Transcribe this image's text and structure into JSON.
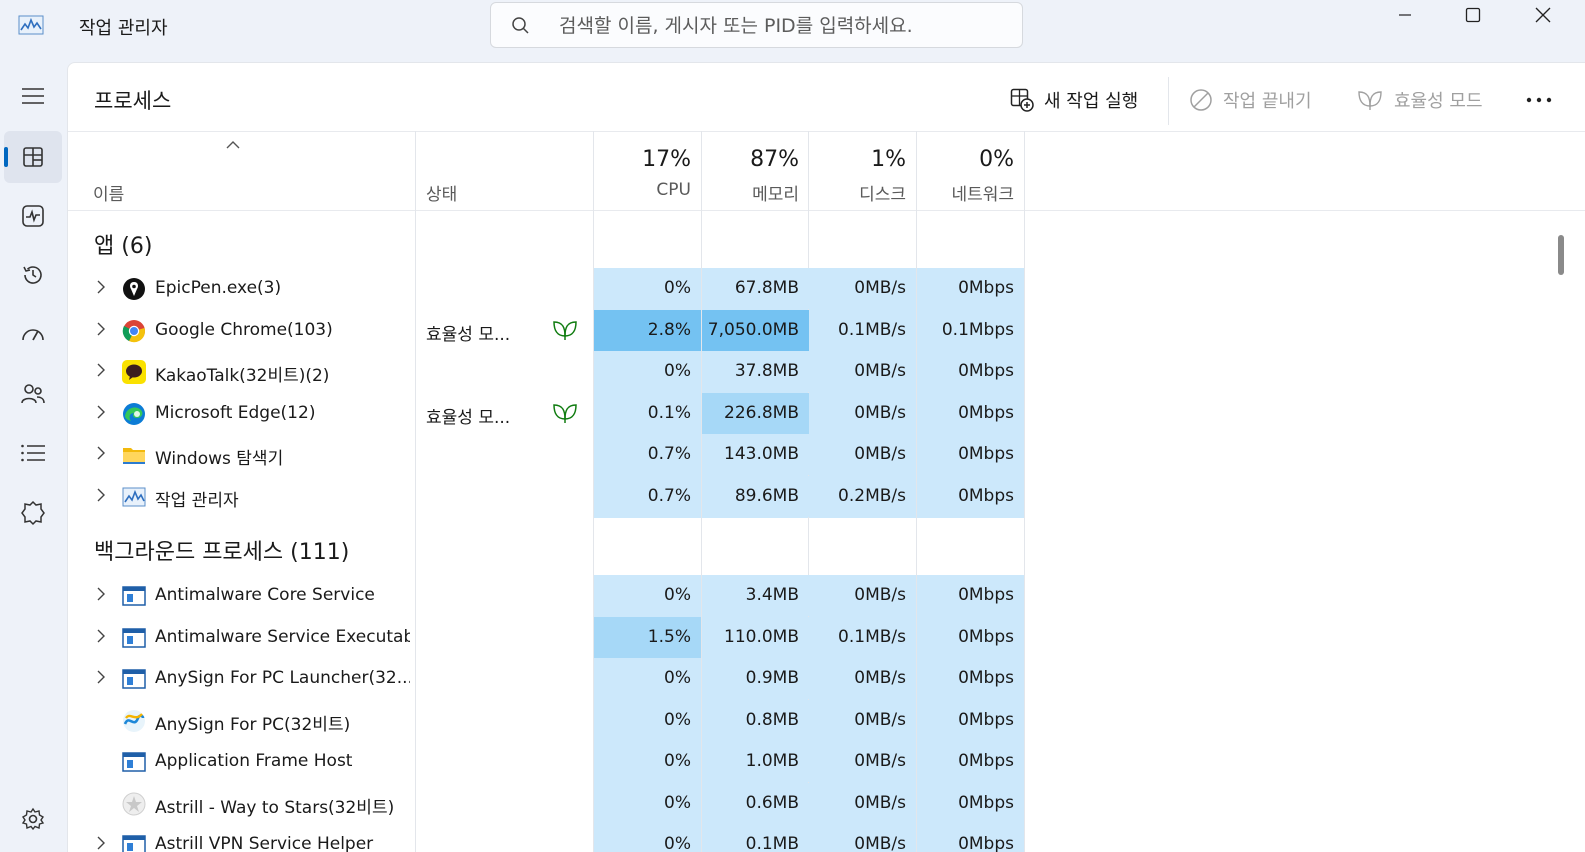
{
  "window": {
    "title": "작업 관리자"
  },
  "search": {
    "placeholder": "검색할 이름, 게시자 또는 PID를 입력하세요."
  },
  "nav": {
    "items": [
      {
        "name": "menu",
        "icon": "hamburger-icon"
      },
      {
        "name": "processes",
        "icon": "processes-icon",
        "active": true
      },
      {
        "name": "performance",
        "icon": "performance-icon"
      },
      {
        "name": "app-history",
        "icon": "history-icon"
      },
      {
        "name": "startup",
        "icon": "startup-icon"
      },
      {
        "name": "users",
        "icon": "users-icon"
      },
      {
        "name": "details",
        "icon": "details-icon"
      },
      {
        "name": "services",
        "icon": "services-icon"
      },
      {
        "name": "settings",
        "icon": "settings-icon"
      }
    ]
  },
  "page": {
    "title": "프로세스"
  },
  "toolbar": {
    "run_new_task": "새 작업 실행",
    "end_task": "작업 끝내기",
    "efficiency_mode": "효율성 모드"
  },
  "columns": {
    "name": "이름",
    "status": "상태",
    "cpu": {
      "pct": "17%",
      "label": "CPU"
    },
    "memory": {
      "pct": "87%",
      "label": "메모리"
    },
    "disk": {
      "pct": "1%",
      "label": "디스크"
    },
    "network": {
      "pct": "0%",
      "label": "네트워크"
    }
  },
  "groups": {
    "apps": {
      "title": "앱 (6)",
      "rows": [
        {
          "name": "EpicPen.exe(3)",
          "status": "",
          "cpu": "0%",
          "mem": "67.8MB",
          "disk": "0MB/s",
          "net": "0Mbps",
          "icon": "epicpen-icon",
          "expand": true
        },
        {
          "name": "Google Chrome(103)",
          "status": "효율성 모...",
          "cpu": "2.8%",
          "mem": "7,050.0MB",
          "disk": "0.1MB/s",
          "net": "0.1Mbps",
          "icon": "chrome-icon",
          "expand": true
        },
        {
          "name": "KakaoTalk(32비트)(2)",
          "status": "",
          "cpu": "0%",
          "mem": "37.8MB",
          "disk": "0MB/s",
          "net": "0Mbps",
          "icon": "kakaotalk-icon",
          "expand": true
        },
        {
          "name": "Microsoft Edge(12)",
          "status": "효율성 모...",
          "cpu": "0.1%",
          "mem": "226.8MB",
          "disk": "0MB/s",
          "net": "0Mbps",
          "icon": "edge-icon",
          "expand": true
        },
        {
          "name": "Windows 탐색기",
          "status": "",
          "cpu": "0.7%",
          "mem": "143.0MB",
          "disk": "0MB/s",
          "net": "0Mbps",
          "icon": "folder-icon",
          "expand": true
        },
        {
          "name": "작업 관리자",
          "status": "",
          "cpu": "0.7%",
          "mem": "89.6MB",
          "disk": "0.2MB/s",
          "net": "0Mbps",
          "icon": "task-manager-icon",
          "expand": true
        }
      ]
    },
    "background": {
      "title": "백그라운드 프로세스 (111)",
      "rows": [
        {
          "name": "Antimalware Core Service",
          "status": "",
          "cpu": "0%",
          "mem": "3.4MB",
          "disk": "0MB/s",
          "net": "0Mbps",
          "icon": "service-window-icon",
          "expand": true
        },
        {
          "name": "Antimalware Service Executab...",
          "status": "",
          "cpu": "1.5%",
          "mem": "110.0MB",
          "disk": "0.1MB/s",
          "net": "0Mbps",
          "icon": "service-window-icon",
          "expand": true
        },
        {
          "name": "AnySign For PC Launcher(32...",
          "status": "",
          "cpu": "0%",
          "mem": "0.9MB",
          "disk": "0MB/s",
          "net": "0Mbps",
          "icon": "service-window-icon",
          "expand": true
        },
        {
          "name": "AnySign For PC(32비트)",
          "status": "",
          "cpu": "0%",
          "mem": "0.8MB",
          "disk": "0MB/s",
          "net": "0Mbps",
          "icon": "anysign-icon",
          "expand": false
        },
        {
          "name": "Application Frame Host",
          "status": "",
          "cpu": "0%",
          "mem": "1.0MB",
          "disk": "0MB/s",
          "net": "0Mbps",
          "icon": "service-window-icon",
          "expand": false
        },
        {
          "name": "Astrill - Way to Stars(32비트)",
          "status": "",
          "cpu": "0%",
          "mem": "0.6MB",
          "disk": "0MB/s",
          "net": "0Mbps",
          "icon": "astrill-icon",
          "expand": false
        },
        {
          "name": "Astrill VPN Service Helper",
          "status": "",
          "cpu": "0%",
          "mem": "0.1MB",
          "disk": "0MB/s",
          "net": "0Mbps",
          "icon": "service-window-icon",
          "expand": true
        }
      ]
    }
  },
  "colors": {
    "accent": "#0067c0",
    "heat_low": "#cce8fb",
    "heat_mid": "#a6d8f7",
    "heat_high": "#74c2f2",
    "efficiency_green": "#107c10"
  }
}
